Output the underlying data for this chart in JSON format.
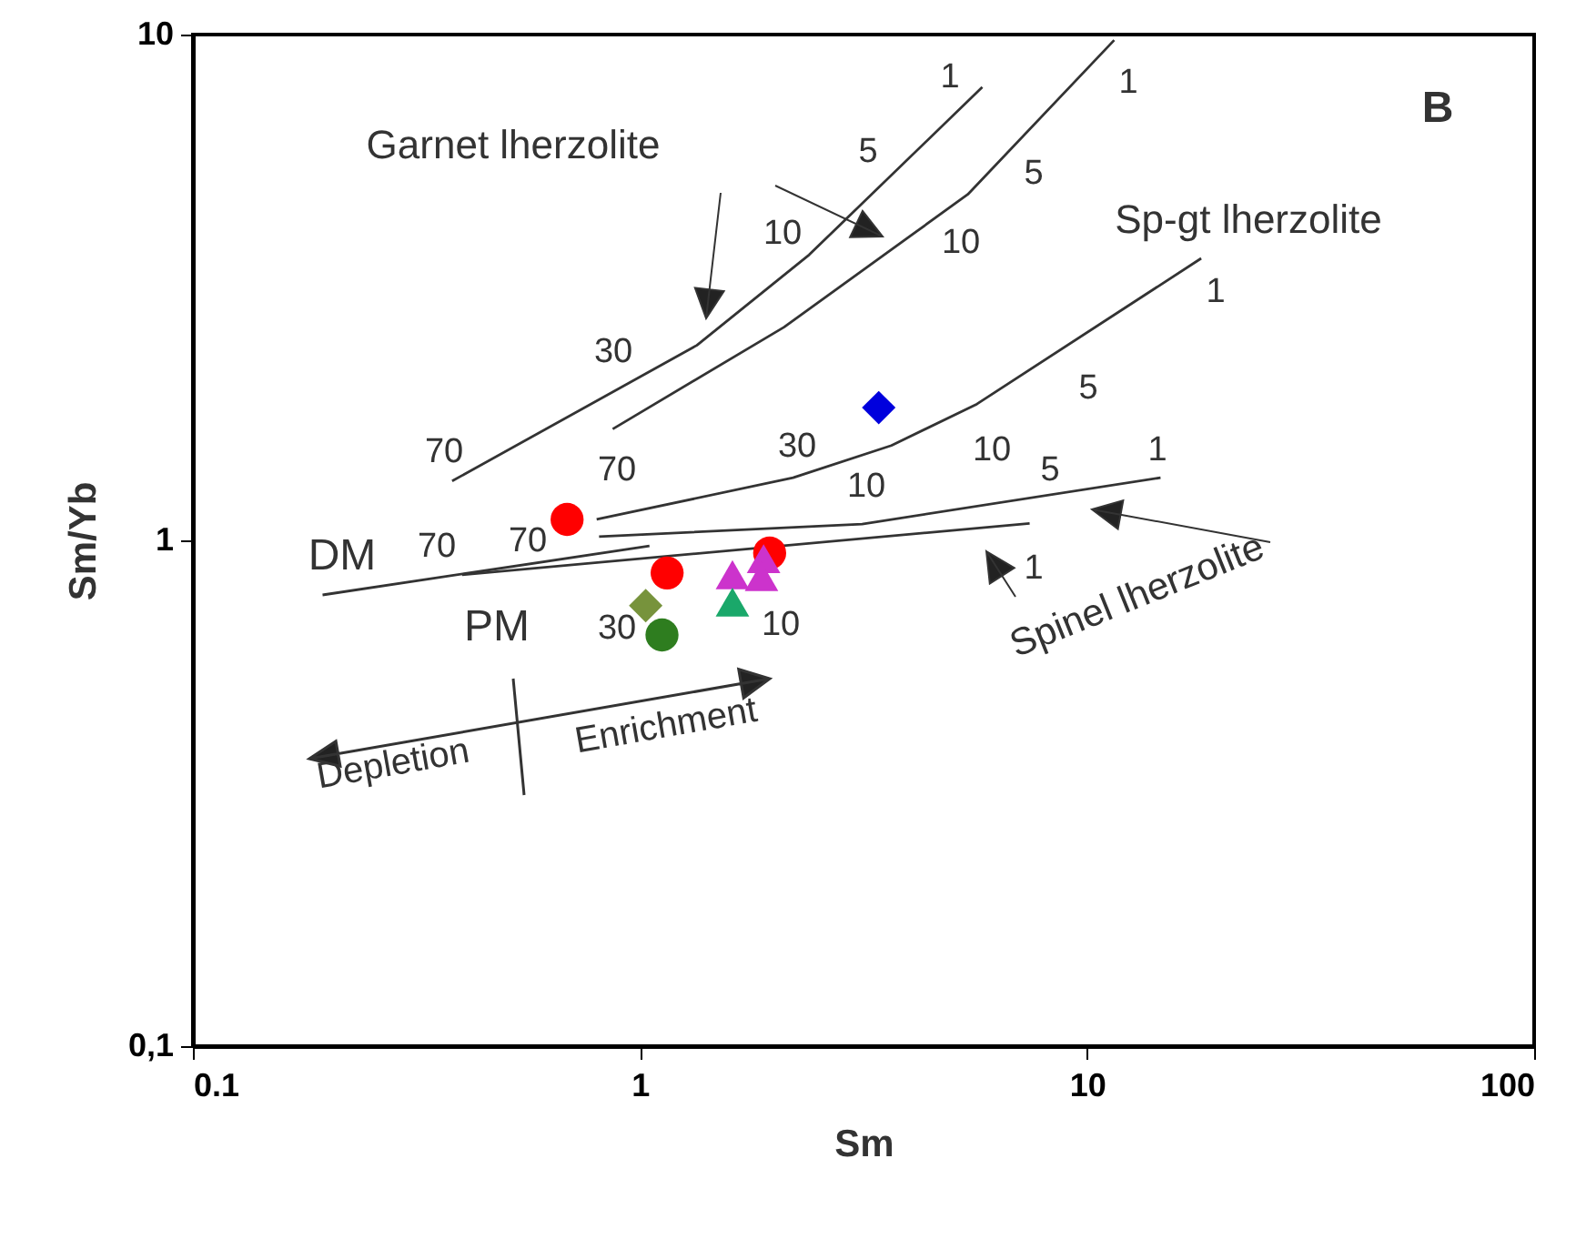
{
  "chart_data": {
    "type": "scatter",
    "xlabel": "Sm",
    "ylabel": "Sm/Yb",
    "log": "xy",
    "grid": false,
    "xlim": [
      0.1,
      100
    ],
    "xticks": [
      0.1,
      1,
      10,
      100
    ],
    "ylim": [
      0.1,
      10
    ],
    "yticks": [
      {
        "value": 0.1,
        "label": "0,1"
      },
      1,
      10
    ],
    "series": [
      {
        "type": "line",
        "color": "#333333",
        "x": [
          0.38,
          1.34,
          2.39,
          5.83
        ],
        "values": [
          1.31,
          2.43,
          3.67,
          7.87
        ]
      },
      {
        "type": "line",
        "color": "#333333",
        "x": [
          0.869,
          2.1,
          5.41,
          11.5
        ],
        "values": [
          1.66,
          2.64,
          4.83,
          9.75
        ]
      },
      {
        "type": "line",
        "color": "#333333",
        "x": [
          0.8,
          2.2,
          3.65,
          5.67,
          18
        ],
        "values": [
          1.1,
          1.33,
          1.54,
          1.86,
          3.61
        ]
      },
      {
        "type": "line",
        "color": "#333333",
        "x": [
          0.81,
          3.14,
          14.6
        ],
        "values": [
          1.017,
          1.077,
          1.33
        ]
      },
      {
        "type": "line",
        "color": "#333333",
        "x": [
          0.4,
          7.44
        ],
        "values": [
          0.855,
          1.08
        ]
      },
      {
        "type": "line",
        "color": "#333333",
        "x": [
          0.195,
          1.05
        ],
        "values": [
          0.78,
          0.975
        ]
      },
      {
        "marker": "circle",
        "color": "#ff0000",
        "x": [
          0.687,
          1.15,
          1.95
        ],
        "values": [
          1.1,
          0.862,
          0.944
        ]
      },
      {
        "marker": "triangle",
        "color": "#cc33cc",
        "x": [
          1.61,
          1.89,
          1.87
        ],
        "values": [
          0.855,
          0.92,
          0.848
        ]
      },
      {
        "marker": "triangle",
        "color": "#1aa86a",
        "x": [
          1.61
        ],
        "values": [
          0.755
        ]
      },
      {
        "marker": "diamond",
        "color": "#77933c",
        "x": [
          1.03
        ],
        "values": [
          0.743
        ]
      },
      {
        "marker": "circle",
        "color": "#2e7d1f",
        "x": [
          1.12
        ],
        "values": [
          0.65
        ]
      },
      {
        "marker": "diamond",
        "color": "#0000dd",
        "x": [
          3.42
        ],
        "values": [
          1.83
        ]
      }
    ],
    "annotations": [
      "70",
      "30",
      "10",
      "5",
      "1",
      "70",
      "10",
      "5",
      "1",
      "30",
      "10",
      "5",
      "1",
      "10",
      "5",
      "1",
      "70",
      "70",
      "30",
      "10",
      "1",
      "Garnet lherzolite",
      "Sp-gt lherzolite",
      "DM",
      "PM",
      "B",
      "Depletion",
      "Enrichment",
      "Spinel lherzolite"
    ]
  }
}
